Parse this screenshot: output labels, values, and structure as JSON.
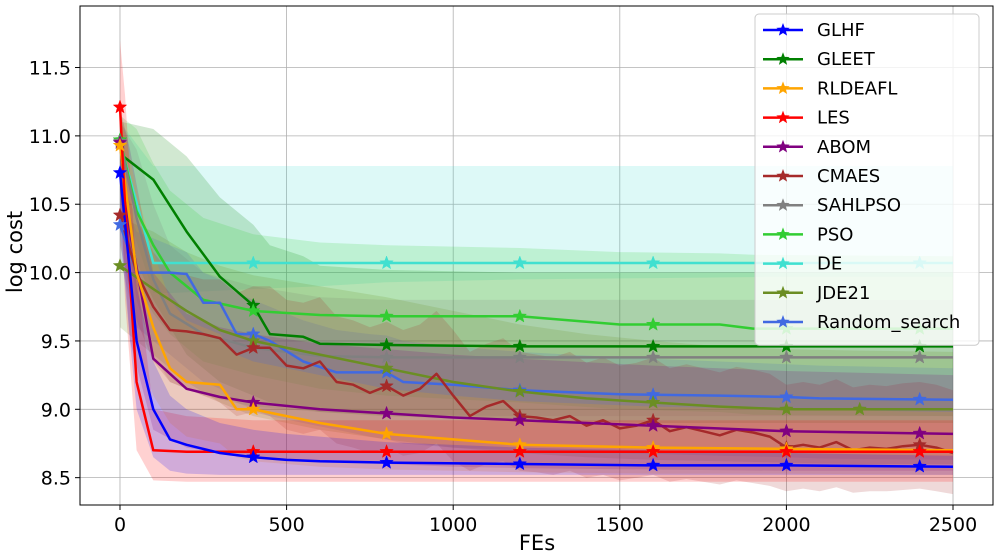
{
  "chart_data": {
    "type": "line",
    "xlabel": "FEs",
    "ylabel": "log cost",
    "xlim": [
      -120,
      2620
    ],
    "ylim": [
      8.3,
      11.95
    ],
    "x_ticks": [
      0,
      500,
      1000,
      1500,
      2000,
      2500
    ],
    "y_ticks": [
      8.5,
      9.0,
      9.5,
      10.0,
      10.5,
      11.0,
      11.5
    ],
    "grid": true,
    "legend_position": "top-right",
    "series": [
      {
        "name": "DE",
        "color": "#40e0d0",
        "x": [
          0,
          100,
          150,
          400,
          600,
          800,
          1200,
          1600,
          2000,
          2500
        ],
        "values": [
          10.95,
          10.07,
          10.07,
          10.07,
          10.07,
          10.07,
          10.07,
          10.07,
          10.07,
          10.07
        ],
        "lower": [
          10.6,
          9.85,
          9.85,
          9.88,
          9.9,
          9.93,
          9.95,
          9.96,
          9.97,
          9.97
        ],
        "upper": [
          11.1,
          10.78,
          10.78,
          10.78,
          10.78,
          10.78,
          10.78,
          10.78,
          10.78,
          10.78
        ],
        "markers": [
          0,
          400,
          800,
          1200,
          1600,
          2400
        ]
      },
      {
        "name": "GLEET",
        "color": "#008000",
        "x": [
          0,
          10,
          100,
          200,
          300,
          400,
          450,
          550,
          600,
          800,
          1200,
          1600,
          2000,
          2500
        ],
        "values": [
          10.97,
          10.85,
          10.68,
          10.3,
          9.97,
          9.76,
          9.55,
          9.53,
          9.48,
          9.47,
          9.46,
          9.46,
          9.46,
          9.46
        ],
        "lower": [
          10.6,
          10.3,
          9.8,
          9.4,
          9.2,
          9.1,
          9.05,
          9.0,
          8.98,
          8.95,
          8.92,
          8.9,
          8.9,
          8.9
        ],
        "upper": [
          11.1,
          11.1,
          11.05,
          10.85,
          10.55,
          10.35,
          10.2,
          10.12,
          10.05,
          10.02,
          10.0,
          10.0,
          10.0,
          10.0
        ],
        "markers": [
          0,
          400,
          800,
          1200,
          1600,
          2000,
          2400
        ]
      },
      {
        "name": "PSO",
        "color": "#32cd32",
        "x": [
          0,
          50,
          100,
          150,
          250,
          400,
          600,
          800,
          1200,
          1500,
          1800,
          1900,
          2500
        ],
        "values": [
          10.97,
          10.45,
          10.2,
          10.0,
          9.8,
          9.72,
          9.69,
          9.68,
          9.68,
          9.62,
          9.62,
          9.59,
          9.59
        ],
        "lower": [
          10.5,
          9.9,
          9.7,
          9.55,
          9.35,
          9.25,
          9.15,
          9.1,
          9.05,
          9.0,
          8.98,
          8.96,
          8.95
        ],
        "upper": [
          11.15,
          11.05,
          10.8,
          10.6,
          10.4,
          10.28,
          10.22,
          10.2,
          10.18,
          10.15,
          10.14,
          10.13,
          10.12
        ],
        "markers": [
          0,
          400,
          800,
          1200,
          1600,
          2000,
          2400
        ]
      },
      {
        "name": "SAHLPSO",
        "color": "#808080",
        "x": [
          0,
          50,
          100,
          150,
          250,
          400,
          600,
          800,
          1200,
          1600,
          2000,
          2500
        ],
        "values": [
          10.96,
          10.4,
          9.95,
          9.7,
          9.55,
          9.45,
          9.39,
          9.38,
          9.38,
          9.38,
          9.38,
          9.38
        ],
        "lower": [
          10.6,
          9.8,
          9.4,
          9.2,
          9.1,
          9.02,
          8.98,
          8.96,
          8.95,
          8.95,
          8.95,
          8.95
        ],
        "upper": [
          11.1,
          10.9,
          10.5,
          10.2,
          10.0,
          9.9,
          9.82,
          9.8,
          9.8,
          9.8,
          9.8,
          9.8
        ],
        "markers": [
          0,
          400,
          800,
          1200,
          1600,
          2000,
          2400
        ]
      },
      {
        "name": "Random_search",
        "color": "#4169e1",
        "x": [
          0,
          50,
          100,
          150,
          200,
          250,
          300,
          350,
          400,
          450,
          550,
          650,
          750,
          800,
          850,
          1000,
          1200,
          1500,
          1800,
          2000,
          2100,
          2500
        ],
        "values": [
          10.35,
          10.0,
          10.0,
          10.0,
          9.99,
          9.78,
          9.78,
          9.55,
          9.55,
          9.5,
          9.35,
          9.27,
          9.27,
          9.27,
          9.2,
          9.18,
          9.14,
          9.11,
          9.1,
          9.09,
          9.08,
          9.07
        ],
        "lower": [
          10.1,
          9.6,
          9.5,
          9.4,
          9.3,
          9.2,
          9.15,
          9.05,
          9.0,
          8.95,
          8.9,
          8.85,
          8.8,
          8.78,
          8.75,
          8.72,
          8.7,
          8.68,
          8.66,
          8.65,
          8.64,
          8.63
        ],
        "upper": [
          10.6,
          10.3,
          10.25,
          10.2,
          10.15,
          10.0,
          9.95,
          9.85,
          9.8,
          9.75,
          9.65,
          9.58,
          9.55,
          9.54,
          9.5,
          9.46,
          9.42,
          9.38,
          9.35,
          9.33,
          9.32,
          9.3
        ],
        "markers": [
          0,
          400,
          800,
          1200,
          1600,
          2000,
          2400
        ]
      },
      {
        "name": "JDE21",
        "color": "#6b8e23",
        "x": [
          0,
          100,
          200,
          300,
          400,
          600,
          800,
          1000,
          1200,
          1400,
          1600,
          1800,
          2000,
          2200,
          2500
        ],
        "values": [
          10.05,
          9.88,
          9.72,
          9.58,
          9.5,
          9.4,
          9.3,
          9.2,
          9.13,
          9.08,
          9.05,
          9.02,
          9.0,
          9.0,
          9.0
        ],
        "lower": [
          9.6,
          9.4,
          9.2,
          9.05,
          8.95,
          8.85,
          8.78,
          8.72,
          8.68,
          8.65,
          8.63,
          8.62,
          8.61,
          8.6,
          8.6
        ],
        "upper": [
          10.4,
          10.3,
          10.15,
          10.05,
          9.98,
          9.9,
          9.82,
          9.72,
          9.62,
          9.55,
          9.5,
          9.46,
          9.44,
          9.43,
          9.42
        ],
        "markers": [
          0,
          400,
          800,
          1200,
          1600,
          2000,
          2220
        ]
      },
      {
        "name": "CMAES",
        "color": "#a52a2a",
        "x": [
          0,
          50,
          100,
          150,
          200,
          250,
          300,
          350,
          400,
          450,
          500,
          550,
          600,
          650,
          700,
          750,
          800,
          850,
          900,
          950,
          1000,
          1050,
          1100,
          1150,
          1200,
          1250,
          1300,
          1350,
          1400,
          1450,
          1500,
          1550,
          1600,
          1650,
          1700,
          1750,
          1800,
          1850,
          1900,
          1950,
          2000,
          2050,
          2100,
          2150,
          2200,
          2250,
          2300,
          2350,
          2400,
          2450,
          2500
        ],
        "values": [
          10.42,
          10.0,
          9.75,
          9.58,
          9.57,
          9.55,
          9.52,
          9.4,
          9.45,
          9.45,
          9.32,
          9.3,
          9.35,
          9.2,
          9.18,
          9.12,
          9.17,
          9.1,
          9.15,
          9.26,
          9.1,
          8.95,
          9.02,
          9.06,
          8.95,
          8.94,
          8.92,
          8.95,
          8.88,
          8.92,
          8.86,
          8.88,
          8.92,
          8.84,
          8.87,
          8.84,
          8.81,
          8.85,
          8.83,
          8.8,
          8.72,
          8.74,
          8.72,
          8.76,
          8.7,
          8.72,
          8.71,
          8.73,
          8.74,
          8.72,
          8.68
        ],
        "lower": [
          10.2,
          9.65,
          9.35,
          9.2,
          9.15,
          9.1,
          9.05,
          8.95,
          8.98,
          8.95,
          8.85,
          8.82,
          8.85,
          8.75,
          8.72,
          8.68,
          8.72,
          8.66,
          8.68,
          8.75,
          8.62,
          8.55,
          8.6,
          8.62,
          8.55,
          8.54,
          8.52,
          8.55,
          8.5,
          8.52,
          8.48,
          8.5,
          8.52,
          8.47,
          8.49,
          8.47,
          8.45,
          8.48,
          8.46,
          8.44,
          8.4,
          8.42,
          8.4,
          8.43,
          8.39,
          8.4,
          8.4,
          8.41,
          8.42,
          8.4,
          8.38
        ],
        "upper": [
          10.7,
          10.4,
          10.15,
          10.0,
          9.98,
          9.95,
          9.95,
          9.85,
          9.9,
          9.9,
          9.8,
          9.78,
          9.82,
          9.68,
          9.65,
          9.6,
          9.64,
          9.58,
          9.62,
          9.72,
          9.58,
          9.42,
          9.48,
          9.52,
          9.42,
          9.4,
          9.38,
          9.42,
          9.34,
          9.38,
          9.32,
          9.34,
          9.38,
          9.3,
          9.33,
          9.3,
          9.27,
          9.31,
          9.29,
          9.26,
          9.18,
          9.2,
          9.18,
          9.22,
          9.16,
          9.18,
          9.17,
          9.19,
          9.2,
          9.18,
          9.14
        ],
        "markers": [
          0,
          400,
          800,
          1200,
          1600,
          2000,
          2400
        ]
      },
      {
        "name": "ABOM",
        "color": "#800080",
        "x": [
          0,
          30,
          100,
          200,
          300,
          400,
          600,
          800,
          1000,
          1200,
          1600,
          2000,
          2500
        ],
        "values": [
          10.95,
          10.3,
          9.37,
          9.15,
          9.09,
          9.05,
          9.0,
          8.97,
          8.94,
          8.92,
          8.88,
          8.84,
          8.82
        ],
        "lower": [
          10.5,
          9.5,
          8.85,
          8.72,
          8.68,
          8.65,
          8.62,
          8.6,
          8.58,
          8.57,
          8.56,
          8.55,
          8.55
        ],
        "upper": [
          11.2,
          10.9,
          10.0,
          9.7,
          9.6,
          9.55,
          9.48,
          9.44,
          9.4,
          9.37,
          9.32,
          9.28,
          9.25
        ],
        "markers": [
          0,
          400,
          800,
          1200,
          1600,
          2000,
          2400
        ]
      },
      {
        "name": "RLDEAFL",
        "color": "#ffa500",
        "x": [
          0,
          50,
          100,
          150,
          200,
          300,
          350,
          400,
          500,
          600,
          700,
          800,
          1000,
          1200,
          1600,
          2000,
          2500
        ],
        "values": [
          10.93,
          10.0,
          9.6,
          9.3,
          9.2,
          9.18,
          9.0,
          9.0,
          8.95,
          8.9,
          8.86,
          8.82,
          8.78,
          8.74,
          8.72,
          8.71,
          8.7
        ],
        "lower": [
          10.5,
          9.5,
          9.1,
          8.9,
          8.8,
          8.75,
          8.65,
          8.62,
          8.6,
          8.58,
          8.57,
          8.56,
          8.55,
          8.54,
          8.53,
          8.53,
          8.52
        ],
        "upper": [
          11.2,
          10.6,
          10.15,
          9.8,
          9.65,
          9.55,
          9.4,
          9.35,
          9.3,
          9.25,
          9.2,
          9.15,
          9.1,
          9.06,
          9.02,
          9.0,
          8.98
        ],
        "markers": [
          0,
          400,
          800,
          1200,
          1600,
          2000
        ]
      },
      {
        "name": "LES",
        "color": "#ff0000",
        "x": [
          0,
          15,
          50,
          100,
          200,
          400,
          800,
          1200,
          1600,
          2000,
          2500
        ],
        "values": [
          11.21,
          10.5,
          9.2,
          8.7,
          8.69,
          8.69,
          8.69,
          8.69,
          8.69,
          8.69,
          8.69
        ],
        "lower": [
          10.7,
          9.8,
          8.7,
          8.48,
          8.47,
          8.47,
          8.47,
          8.47,
          8.47,
          8.47,
          8.47
        ],
        "upper": [
          11.7,
          11.3,
          10.0,
          9.0,
          8.95,
          8.92,
          8.92,
          8.92,
          8.92,
          8.92,
          8.92
        ],
        "markers": [
          0,
          400,
          800,
          1200,
          1600,
          2000,
          2400
        ]
      },
      {
        "name": "GLHF",
        "color": "#0000ff",
        "x": [
          0,
          30,
          50,
          100,
          150,
          200,
          300,
          400,
          500,
          600,
          800,
          1200,
          1600,
          2000,
          2500
        ],
        "values": [
          10.73,
          10.0,
          9.5,
          9.0,
          8.78,
          8.74,
          8.68,
          8.65,
          8.63,
          8.62,
          8.61,
          8.6,
          8.59,
          8.59,
          8.58
        ],
        "lower": [
          10.3,
          9.5,
          9.0,
          8.65,
          8.55,
          8.53,
          8.52,
          8.52,
          8.52,
          8.52,
          8.52,
          8.52,
          8.52,
          8.52,
          8.52
        ],
        "upper": [
          11.0,
          10.4,
          9.9,
          9.35,
          9.1,
          9.0,
          8.9,
          8.85,
          8.82,
          8.8,
          8.76,
          8.72,
          8.7,
          8.68,
          8.66
        ],
        "markers": [
          0,
          400,
          800,
          1200,
          1600,
          2000,
          2400
        ]
      }
    ],
    "legend": [
      "GLHF",
      "GLEET",
      "RLDEAFL",
      "LES",
      "ABOM",
      "CMAES",
      "SAHLPSO",
      "PSO",
      "DE",
      "JDE21",
      "Random_search"
    ]
  }
}
